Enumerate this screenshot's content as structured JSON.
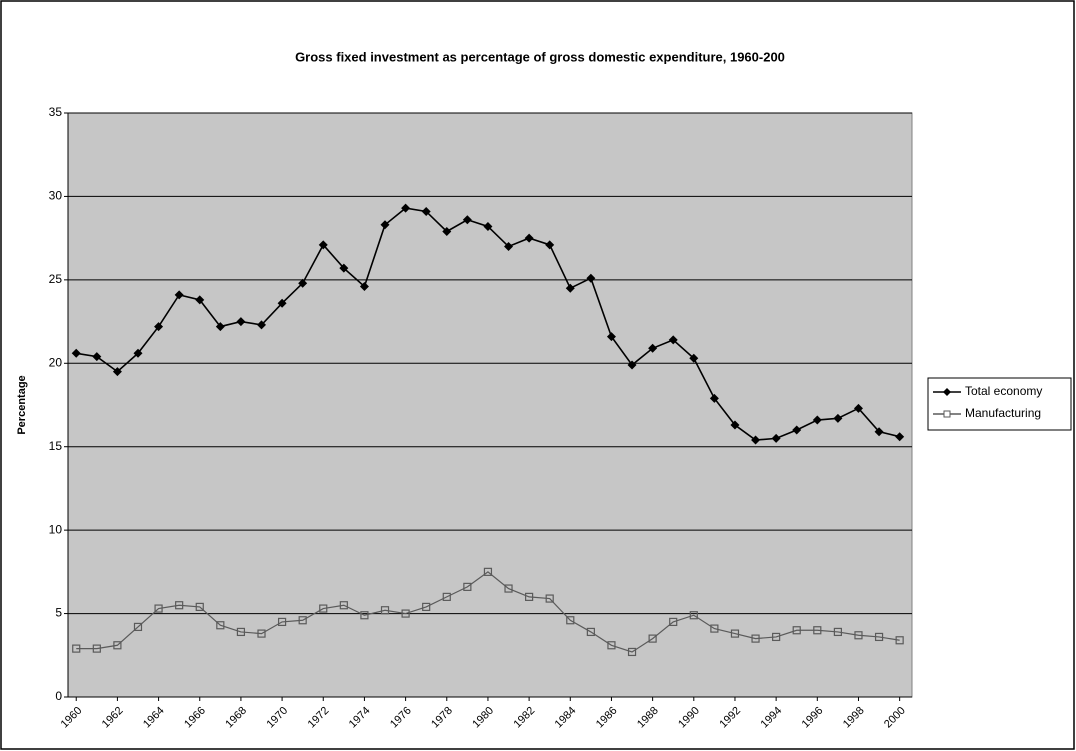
{
  "chart_data": {
    "type": "line",
    "title": "Gross fixed investment as percentage of gross domestic expenditure, 1960-200",
    "y_label": "Percentage",
    "x": [
      1960,
      1961,
      1962,
      1963,
      1964,
      1965,
      1966,
      1967,
      1968,
      1969,
      1970,
      1971,
      1972,
      1973,
      1974,
      1975,
      1976,
      1977,
      1978,
      1979,
      1980,
      1981,
      1982,
      1983,
      1984,
      1985,
      1986,
      1987,
      1988,
      1989,
      1990,
      1991,
      1992,
      1993,
      1994,
      1995,
      1996,
      1997,
      1998,
      1999,
      2000
    ],
    "series": [
      {
        "name": "Total economy",
        "color": "#000000",
        "marker": "diamond",
        "values": [
          20.6,
          20.4,
          19.5,
          20.6,
          22.2,
          24.1,
          23.8,
          22.2,
          22.5,
          22.3,
          23.6,
          24.8,
          27.1,
          25.7,
          24.6,
          28.3,
          29.3,
          29.1,
          27.9,
          28.6,
          28.2,
          27.0,
          27.5,
          27.1,
          24.5,
          25.1,
          21.6,
          19.9,
          20.9,
          21.4,
          20.3,
          17.9,
          16.3,
          15.4,
          15.5,
          16.0,
          16.6,
          16.7,
          17.3,
          15.9,
          15.6
        ]
      },
      {
        "name": "Manufacturing",
        "color": "#5a5a5a",
        "marker": "square",
        "values": [
          2.9,
          2.9,
          3.1,
          4.2,
          5.3,
          5.5,
          5.4,
          4.3,
          3.9,
          3.8,
          4.5,
          4.6,
          5.3,
          5.5,
          4.9,
          5.2,
          5.0,
          5.4,
          6.0,
          6.6,
          7.5,
          6.5,
          6.0,
          5.9,
          4.6,
          3.9,
          3.1,
          2.7,
          3.5,
          4.5,
          4.9,
          4.1,
          3.8,
          3.5,
          3.6,
          4.0,
          4.0,
          3.9,
          3.7,
          3.6,
          3.4
        ]
      }
    ],
    "xlim": [
      1959.6,
      2000.6
    ],
    "xticks": [
      1960,
      1962,
      1964,
      1966,
      1968,
      1970,
      1972,
      1974,
      1976,
      1978,
      1980,
      1982,
      1984,
      1986,
      1988,
      1990,
      1992,
      1994,
      1996,
      1998,
      2000
    ],
    "ylim": [
      0,
      35
    ],
    "yticks": [
      0,
      5,
      10,
      15,
      20,
      25,
      30,
      35
    ],
    "grid": true,
    "legend": "right",
    "background": "#c6c6c6"
  }
}
